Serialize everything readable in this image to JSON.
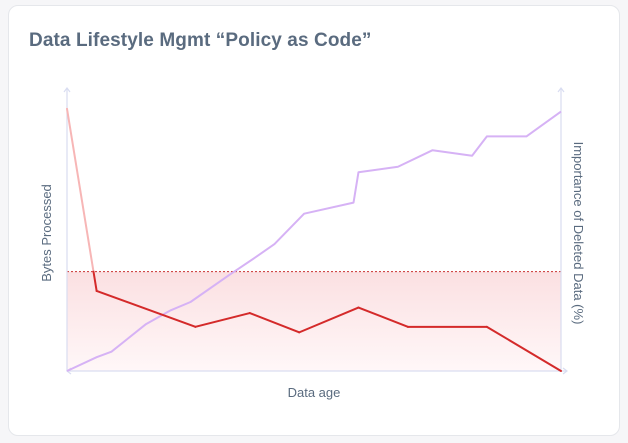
{
  "chart_data": {
    "title": "Data Lifestyle Mgmt “Policy as Code”",
    "xlabel": "Data age",
    "ylabel_left": "Bytes Processed",
    "ylabel_right": "Importance of Deleted Data (%)",
    "series": [
      {
        "type": "line",
        "axis": "left",
        "color": "#d42a2a",
        "color_faded": "#f7b6b6",
        "x": [
          0,
          0.06,
          0.26,
          0.37,
          0.47,
          0.59,
          0.69,
          0.85,
          1.0
        ],
        "values": [
          0.95,
          0.29,
          0.16,
          0.21,
          0.14,
          0.23,
          0.16,
          0.16,
          0.0
        ],
        "threshold": 0.36
      },
      {
        "type": "line",
        "axis": "right",
        "color": "#d6b2f5",
        "x": [
          0,
          0.06,
          0.09,
          0.16,
          0.21,
          0.25,
          0.33,
          0.38,
          0.42,
          0.48,
          0.58,
          0.59,
          0.67,
          0.74,
          0.82,
          0.85,
          0.93,
          1.0
        ],
        "values": [
          0,
          0.05,
          0.07,
          0.17,
          0.22,
          0.25,
          0.35,
          0.41,
          0.46,
          0.57,
          0.61,
          0.72,
          0.74,
          0.8,
          0.78,
          0.85,
          0.85,
          0.94
        ]
      }
    ],
    "band": {
      "from": 0,
      "to": 0.36,
      "fill_top": "#fbe0e2",
      "fill_bottom": "#fff7f8",
      "border": "#c93030"
    },
    "axis_color": "#d9ddf1"
  }
}
